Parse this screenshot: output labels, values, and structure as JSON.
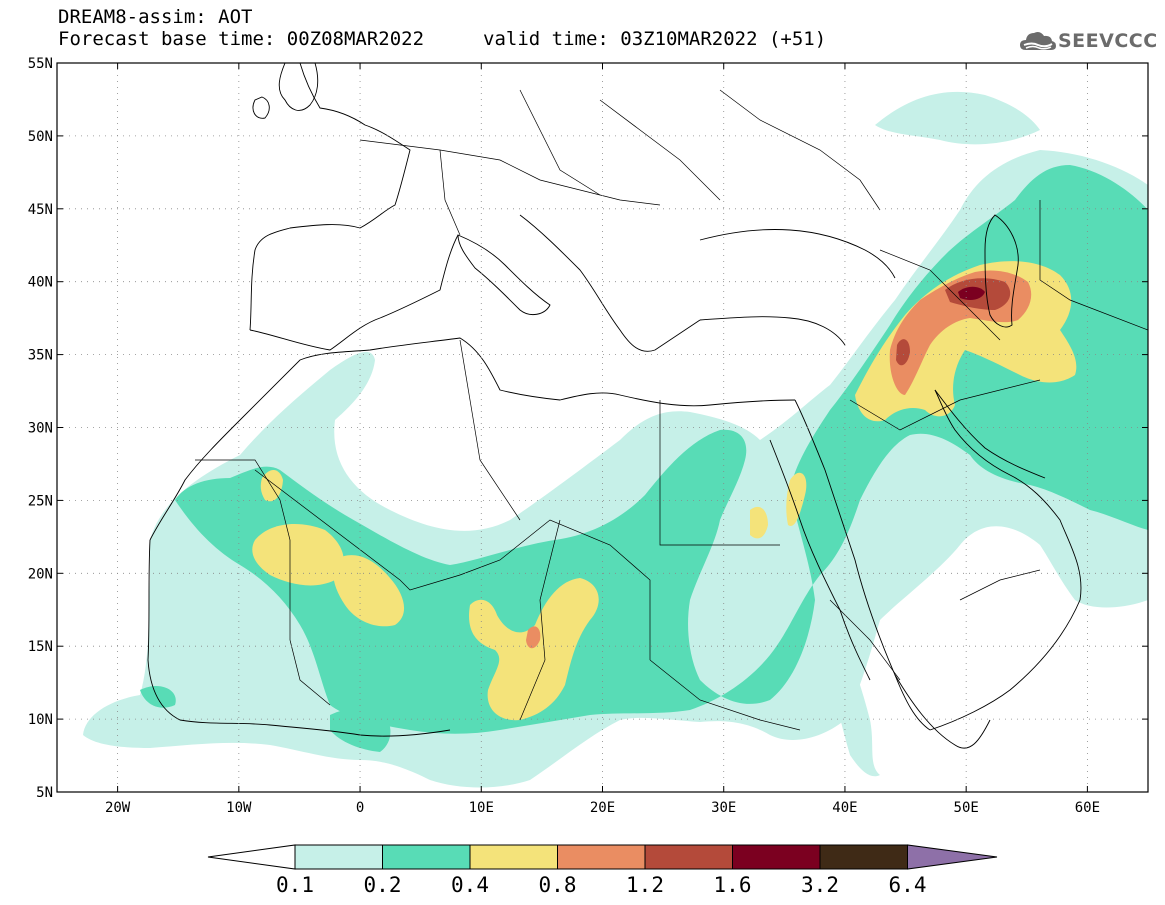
{
  "header": {
    "title": "DREAM8-assim: AOT",
    "base_time": "Forecast base time: 00Z08MAR2022",
    "valid_time": "valid time: 03Z10MAR2022 (+51)",
    "logo_text": "SEEVCCC"
  },
  "map": {
    "lon_range": [
      -25,
      65
    ],
    "lat_range": [
      5,
      55
    ],
    "lon_ticks": [
      {
        "value": -20,
        "label": "20W"
      },
      {
        "value": -10,
        "label": "10W"
      },
      {
        "value": 0,
        "label": "0"
      },
      {
        "value": 10,
        "label": "10E"
      },
      {
        "value": 20,
        "label": "20E"
      },
      {
        "value": 30,
        "label": "30E"
      },
      {
        "value": 40,
        "label": "40E"
      },
      {
        "value": 50,
        "label": "50E"
      },
      {
        "value": 60,
        "label": "60E"
      }
    ],
    "lat_ticks": [
      {
        "value": 5,
        "label": "5N"
      },
      {
        "value": 10,
        "label": "10N"
      },
      {
        "value": 15,
        "label": "15N"
      },
      {
        "value": 20,
        "label": "20N"
      },
      {
        "value": 25,
        "label": "25N"
      },
      {
        "value": 30,
        "label": "30N"
      },
      {
        "value": 35,
        "label": "35N"
      },
      {
        "value": 40,
        "label": "40N"
      },
      {
        "value": 45,
        "label": "45N"
      },
      {
        "value": 50,
        "label": "50N"
      },
      {
        "value": 55,
        "label": "55N"
      }
    ],
    "grid": true
  },
  "colorbar": {
    "levels": [
      "0.1",
      "0.2",
      "0.4",
      "0.8",
      "1.2",
      "1.6",
      "3.2",
      "6.4"
    ],
    "colors": [
      "#ffffff",
      "#c6f0e8",
      "#58dcb6",
      "#f4e37a",
      "#ea8d62",
      "#b44a3a",
      "#7b0020",
      "#3f2a16",
      "#8e70a8"
    ]
  }
}
